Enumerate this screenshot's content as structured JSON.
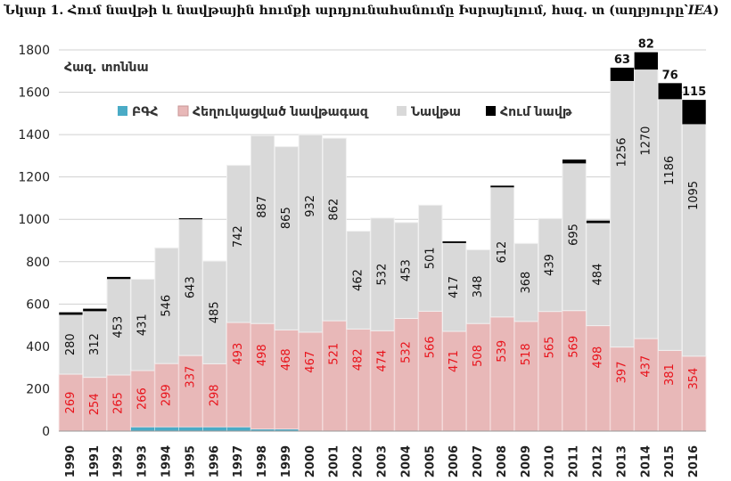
{
  "title": {
    "main": "Նկար 1. Հում նավթի և նավթային հումքի արդյունահանումը Իսրայելում, հազ. տ (աղբյուրը՝",
    "source": "IEA",
    "close": ")"
  },
  "chart_data": {
    "type": "bar",
    "stacked": true,
    "title": "Նկար 1. Հում նավթի և նավթային հումքի արդյունահանումը Իսրայելում, հազ. տ (աղբյուրը՝ IEA)",
    "ylabel": "Հազ. տոննա",
    "xlabel": "",
    "ylim": [
      0,
      1800
    ],
    "yticks": [
      "0",
      "200",
      "400",
      "600",
      "800",
      "1000",
      "1200",
      "1400",
      "1600",
      "1800"
    ],
    "grid": true,
    "legend_position": "top-left",
    "categories": [
      "1990",
      "1991",
      "1992",
      "1993",
      "1994",
      "1995",
      "1996",
      "1997",
      "1998",
      "1999",
      "2000",
      "2001",
      "2002",
      "2003",
      "2004",
      "2005",
      "2006",
      "2007",
      "2008",
      "2009",
      "2010",
      "2011",
      "2012",
      "2013",
      "2014",
      "2015",
      "2016"
    ],
    "series": [
      {
        "name": "ԲԳՀ",
        "color": "#4aabc6",
        "values": [
          0,
          0,
          0,
          20,
          20,
          20,
          20,
          20,
          10,
          10,
          0,
          0,
          0,
          0,
          0,
          0,
          0,
          0,
          0,
          0,
          0,
          0,
          0,
          0,
          0,
          0,
          0
        ],
        "labels_shown": false
      },
      {
        "name": "Հեղուկացված նավթագազ",
        "color": "#e8b8b8",
        "label_color": "#e8131b",
        "values": [
          269,
          254,
          265,
          266,
          299,
          337,
          298,
          493,
          498,
          468,
          467,
          521,
          482,
          474,
          532,
          566,
          471,
          508,
          539,
          518,
          565,
          569,
          498,
          397,
          437,
          381,
          354
        ],
        "labels_shown": true
      },
      {
        "name": "Նավթա",
        "color": "#d9d9d9",
        "label_color": "#111111",
        "values": [
          280,
          312,
          453,
          431,
          546,
          643,
          485,
          742,
          887,
          865,
          932,
          862,
          462,
          532,
          453,
          501,
          417,
          348,
          612,
          368,
          439,
          695,
          484,
          1256,
          1270,
          1186,
          1095
        ],
        "labels_shown": true
      },
      {
        "name": "Հում նավթ",
        "color": "#000000",
        "label_color": "#111111",
        "values": [
          12,
          12,
          10,
          0,
          0,
          5,
          0,
          0,
          0,
          0,
          0,
          0,
          0,
          0,
          0,
          0,
          8,
          0,
          8,
          0,
          0,
          18,
          12,
          63,
          82,
          76,
          115
        ],
        "labels_shown": true,
        "labeled_categories": [
          "2013",
          "2014",
          "2015",
          "2016"
        ]
      }
    ]
  }
}
